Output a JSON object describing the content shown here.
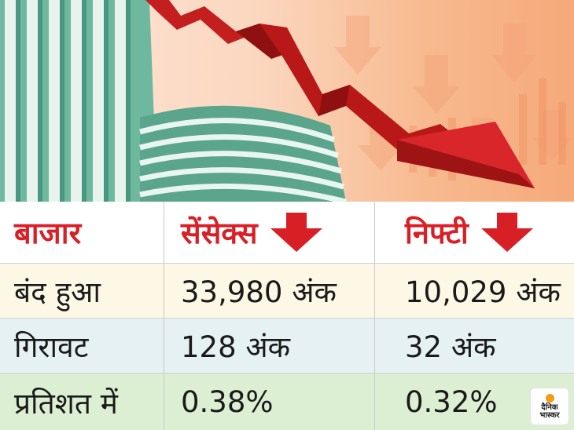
{
  "table": {
    "header": {
      "market": "बाजार",
      "sensex": "सेंसेक्स",
      "nifty": "निफ्टी"
    },
    "rows": [
      {
        "label": "बंद हुआ",
        "sensex": "33,980 अंक",
        "nifty": "10,029 अंक"
      },
      {
        "label": "गिरावट",
        "sensex": "128 अंक",
        "nifty": "32 अंक"
      },
      {
        "label": "प्रतिशत में",
        "sensex": "0.38%",
        "nifty": "0.32%"
      }
    ]
  },
  "logo": {
    "line1": "दैनिक",
    "line2": "भास्कर"
  },
  "colors": {
    "accent_red": "#d81f26",
    "row_closed_bg": "#fdf8e6",
    "row_fall_bg": "#e6f1f4",
    "row_pct_bg": "#dcefd2"
  },
  "icons": {
    "sensex_trend": "down-arrow-icon",
    "nifty_trend": "down-arrow-icon"
  }
}
